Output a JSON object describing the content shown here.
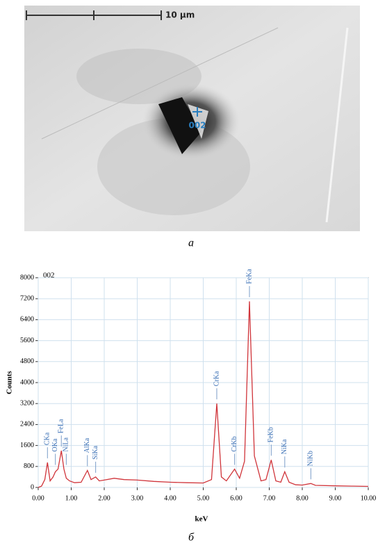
{
  "image": {
    "scale_label": "10 μm",
    "point_label": "002",
    "caption": "a"
  },
  "chart_data": {
    "type": "line",
    "caption": "б",
    "title": "002",
    "xlabel": "keV",
    "ylabel": "Counts",
    "color": "#d0343a",
    "grid": true,
    "x": [
      0.0,
      0.1,
      0.2,
      0.28,
      0.36,
      0.45,
      0.52,
      0.6,
      0.7,
      0.78,
      0.85,
      0.95,
      1.1,
      1.3,
      1.49,
      1.6,
      1.74,
      1.85,
      2.0,
      2.3,
      2.6,
      3.0,
      3.5,
      4.0,
      4.5,
      5.0,
      5.25,
      5.41,
      5.55,
      5.7,
      5.95,
      6.1,
      6.25,
      6.4,
      6.55,
      6.75,
      6.9,
      7.06,
      7.2,
      7.35,
      7.47,
      7.6,
      7.8,
      8.0,
      8.26,
      8.4,
      9.0,
      9.5,
      10.0
    ],
    "values": [
      0,
      50,
      300,
      950,
      250,
      400,
      600,
      700,
      1400,
      700,
      350,
      250,
      180,
      200,
      650,
      300,
      400,
      250,
      280,
      350,
      300,
      280,
      230,
      200,
      180,
      170,
      300,
      3200,
      400,
      250,
      700,
      350,
      1000,
      7100,
      1200,
      250,
      300,
      1050,
      250,
      200,
      600,
      200,
      100,
      90,
      150,
      80,
      60,
      50,
      40
    ],
    "peaks": [
      {
        "label": "CKa",
        "x": 0.28
      },
      {
        "label": "OKa",
        "x": 0.52
      },
      {
        "label": "FeLa",
        "x": 0.7
      },
      {
        "label": "NiLa",
        "x": 0.85
      },
      {
        "label": "AlKa",
        "x": 1.49
      },
      {
        "label": "SiKa",
        "x": 1.74
      },
      {
        "label": "CrKa",
        "x": 5.41
      },
      {
        "label": "CrKb",
        "x": 5.95
      },
      {
        "label": "FeKa",
        "x": 6.4
      },
      {
        "label": "FeKb",
        "x": 7.06
      },
      {
        "label": "NiKa",
        "x": 7.47
      },
      {
        "label": "NiKb",
        "x": 8.26
      }
    ],
    "xlim": [
      0,
      10
    ],
    "ylim": [
      0,
      8000
    ],
    "xticks": [
      {
        "value": 0,
        "label": "0.00"
      },
      {
        "value": 1,
        "label": "1.00"
      },
      {
        "value": 2,
        "label": "2.00"
      },
      {
        "value": 3,
        "label": "3.00"
      },
      {
        "value": 4,
        "label": "4.00"
      },
      {
        "value": 5,
        "label": "5.00"
      },
      {
        "value": 6,
        "label": "6.00"
      },
      {
        "value": 7,
        "label": "7.00"
      },
      {
        "value": 8,
        "label": "8.00"
      },
      {
        "value": 9,
        "label": "9.00"
      },
      {
        "value": 10,
        "label": "10.00"
      }
    ],
    "yticks": [
      0,
      800,
      1600,
      2400,
      3200,
      4000,
      4800,
      5600,
      6400,
      7200,
      8000
    ]
  }
}
